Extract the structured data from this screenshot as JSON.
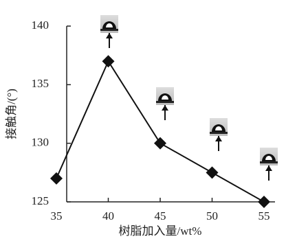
{
  "chart_data": {
    "type": "line",
    "x_label": "树脂加入量/wt%",
    "y_label": "接触角/(°)",
    "x": [
      35,
      40,
      45,
      50,
      55
    ],
    "values": [
      127,
      137,
      130,
      127.5,
      125
    ],
    "color": "#111",
    "xlim": [
      35,
      55
    ],
    "xticks": [
      35,
      40,
      45,
      50,
      55
    ],
    "ylim": [
      125,
      140
    ],
    "yticks": [
      125,
      130,
      135,
      140
    ]
  }
}
